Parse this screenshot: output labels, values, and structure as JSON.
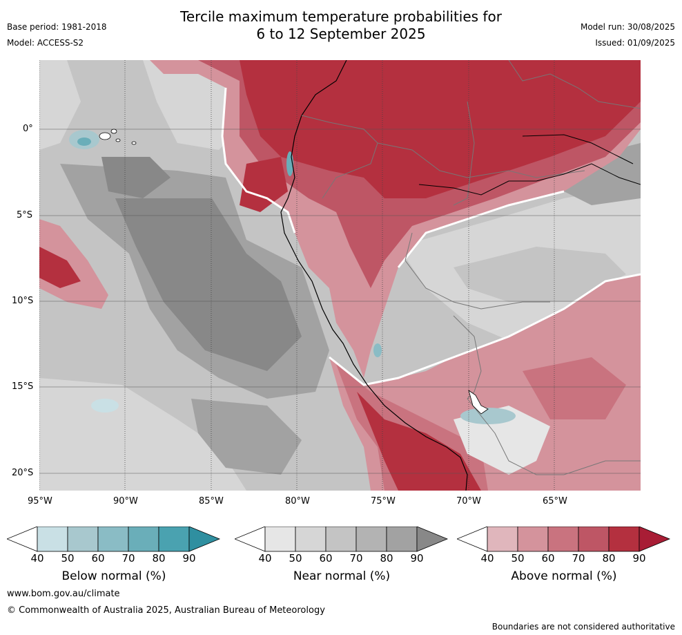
{
  "header": {
    "title_line1": "Tercile maximum temperature probabilities for",
    "title_line2": "6 to 12 September 2025",
    "base_period": "Base period: 1981-2018",
    "model": "Model: ACCESS-S2",
    "model_run": "Model run: 30/08/2025",
    "issued": "Issued: 01/09/2025"
  },
  "map": {
    "lat_labels": [
      "0°",
      "5°S",
      "10°S",
      "15°S",
      "20°S"
    ],
    "lon_labels": [
      "95°W",
      "90°W",
      "85°W",
      "80°W",
      "75°W",
      "70°W",
      "65°W"
    ]
  },
  "colorbars": [
    {
      "label": "Below normal (%)",
      "ticks": [
        "40",
        "50",
        "60",
        "70",
        "80",
        "90"
      ],
      "colors": [
        "#ffffff",
        "#c9e0e5",
        "#a8c8ce",
        "#8abcc5",
        "#6aaeb9",
        "#4aa2b0",
        "#2f8fa0"
      ]
    },
    {
      "label": "Near normal (%)",
      "ticks": [
        "40",
        "50",
        "60",
        "70",
        "80",
        "90"
      ],
      "colors": [
        "#ffffff",
        "#e6e6e6",
        "#d6d6d6",
        "#c4c4c4",
        "#b3b3b3",
        "#a2a2a2",
        "#888888"
      ]
    },
    {
      "label": "Above normal (%)",
      "ticks": [
        "40",
        "50",
        "60",
        "70",
        "80",
        "90"
      ],
      "colors": [
        "#ffffff",
        "#e0b6bc",
        "#d4939c",
        "#c9737f",
        "#be5665",
        "#b4303f",
        "#a81d35"
      ]
    }
  ],
  "footer": {
    "website": "www.bom.gov.au/climate",
    "copyright": "© Commonwealth of Australia 2025, Australian Bureau of Meteorology",
    "disclaimer": "Boundaries are not considered authoritative"
  }
}
